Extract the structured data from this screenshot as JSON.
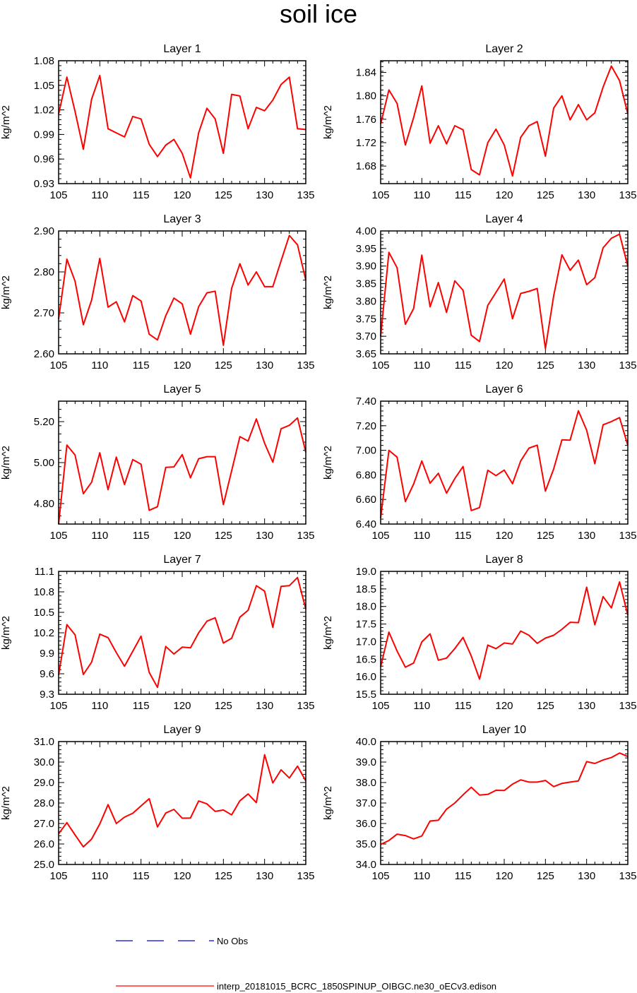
{
  "title": "soil ice",
  "colors": {
    "series": "#ff0000",
    "obs": "#0000cc",
    "axis": "#000000"
  },
  "chart_data": [
    {
      "type": "line",
      "title": "Layer 1",
      "ylabel": "kg/m^2",
      "xlim": [
        105,
        135
      ],
      "ylim": [
        0.93,
        1.08
      ],
      "xticks": [
        "105",
        "110",
        "115",
        "120",
        "125",
        "130",
        "135"
      ],
      "yticks": [
        "0.93",
        "0.96",
        "0.99",
        "1.02",
        "1.05",
        "1.08"
      ],
      "x": [
        105,
        106,
        107,
        108,
        109,
        110,
        111,
        112,
        113,
        114,
        115,
        116,
        117,
        118,
        119,
        120,
        121,
        122,
        123,
        124,
        125,
        126,
        127,
        128,
        129,
        130,
        131,
        132,
        133,
        134,
        135
      ],
      "values": [
        1.015,
        1.06,
        1.018,
        0.972,
        1.033,
        1.062,
        0.997,
        0.992,
        0.987,
        1.012,
        1.009,
        0.978,
        0.963,
        0.977,
        0.984,
        0.967,
        0.937,
        0.992,
        1.022,
        1.009,
        0.967,
        1.039,
        1.037,
        0.997,
        1.023,
        1.019,
        1.032,
        1.051,
        1.06,
        0.997,
        0.996
      ]
    },
    {
      "type": "line",
      "title": "Layer 2",
      "ylabel": "kg/m^2",
      "xlim": [
        105,
        135
      ],
      "ylim": [
        1.65,
        1.86
      ],
      "xticks": [
        "105",
        "110",
        "115",
        "120",
        "125",
        "130",
        "135"
      ],
      "yticks": [
        "1.68",
        "1.72",
        "1.76",
        "1.80",
        "1.84"
      ],
      "x": [
        105,
        106,
        107,
        108,
        109,
        110,
        111,
        112,
        113,
        114,
        115,
        116,
        117,
        118,
        119,
        120,
        121,
        122,
        123,
        124,
        125,
        126,
        127,
        128,
        129,
        130,
        131,
        132,
        133,
        134,
        135
      ],
      "values": [
        1.752,
        1.81,
        1.787,
        1.716,
        1.763,
        1.817,
        1.719,
        1.749,
        1.718,
        1.749,
        1.742,
        1.674,
        1.665,
        1.72,
        1.743,
        1.716,
        1.663,
        1.729,
        1.749,
        1.756,
        1.697,
        1.779,
        1.8,
        1.759,
        1.785,
        1.759,
        1.771,
        1.815,
        1.851,
        1.826,
        1.769
      ]
    },
    {
      "type": "line",
      "title": "Layer 3",
      "ylabel": "kg/m^2",
      "xlim": [
        105,
        135
      ],
      "ylim": [
        2.6,
        2.9
      ],
      "xticks": [
        "105",
        "110",
        "115",
        "120",
        "125",
        "130",
        "135"
      ],
      "yticks": [
        "2.60",
        "2.70",
        "2.80",
        "2.90"
      ],
      "x": [
        105,
        106,
        107,
        108,
        109,
        110,
        111,
        112,
        113,
        114,
        115,
        116,
        117,
        118,
        119,
        120,
        121,
        122,
        123,
        124,
        125,
        126,
        127,
        128,
        129,
        130,
        131,
        132,
        133,
        134,
        135
      ],
      "values": [
        2.685,
        2.831,
        2.777,
        2.671,
        2.731,
        2.833,
        2.714,
        2.727,
        2.678,
        2.742,
        2.729,
        2.648,
        2.634,
        2.693,
        2.736,
        2.722,
        2.648,
        2.715,
        2.749,
        2.753,
        2.621,
        2.76,
        2.82,
        2.768,
        2.8,
        2.764,
        2.764,
        2.827,
        2.889,
        2.866,
        2.78
      ]
    },
    {
      "type": "line",
      "title": "Layer 4",
      "ylabel": "kg/m^2",
      "xlim": [
        105,
        135
      ],
      "ylim": [
        3.65,
        4.0
      ],
      "xticks": [
        "105",
        "110",
        "115",
        "120",
        "125",
        "130",
        "135"
      ],
      "yticks": [
        "3.65",
        "3.70",
        "3.75",
        "3.80",
        "3.85",
        "3.90",
        "3.95",
        "4.00"
      ],
      "x": [
        105,
        106,
        107,
        108,
        109,
        110,
        111,
        112,
        113,
        114,
        115,
        116,
        117,
        118,
        119,
        120,
        121,
        122,
        123,
        124,
        125,
        126,
        127,
        128,
        129,
        130,
        131,
        132,
        133,
        134,
        135
      ],
      "values": [
        3.7,
        3.939,
        3.895,
        3.734,
        3.779,
        3.931,
        3.784,
        3.853,
        3.768,
        3.858,
        3.831,
        3.703,
        3.685,
        3.788,
        3.825,
        3.863,
        3.75,
        3.822,
        3.828,
        3.836,
        3.665,
        3.815,
        3.932,
        3.888,
        3.917,
        3.847,
        3.867,
        3.952,
        3.979,
        3.991,
        3.9
      ]
    },
    {
      "type": "line",
      "title": "Layer 5",
      "ylabel": "kg/m^2",
      "xlim": [
        105,
        135
      ],
      "ylim": [
        4.7,
        5.3
      ],
      "xticks": [
        "105",
        "110",
        "115",
        "120",
        "125",
        "130",
        "135"
      ],
      "yticks": [
        "4.80",
        "5.00",
        "5.20"
      ],
      "x": [
        105,
        106,
        107,
        108,
        109,
        110,
        111,
        112,
        113,
        114,
        115,
        116,
        117,
        118,
        119,
        120,
        121,
        122,
        123,
        124,
        125,
        126,
        127,
        128,
        129,
        130,
        131,
        132,
        133,
        134,
        135
      ],
      "values": [
        4.7,
        5.086,
        5.037,
        4.848,
        4.904,
        5.048,
        4.868,
        5.027,
        4.893,
        5.015,
        4.992,
        4.767,
        4.785,
        4.977,
        4.979,
        5.039,
        4.926,
        5.019,
        5.029,
        5.029,
        4.795,
        4.96,
        5.127,
        5.105,
        5.213,
        5.094,
        5.002,
        5.165,
        5.182,
        5.218,
        5.05
      ]
    },
    {
      "type": "line",
      "title": "Layer 6",
      "ylabel": "kg/m^2",
      "xlim": [
        105,
        135
      ],
      "ylim": [
        6.4,
        7.4
      ],
      "xticks": [
        "105",
        "110",
        "115",
        "120",
        "125",
        "130",
        "135"
      ],
      "yticks": [
        "6.40",
        "6.60",
        "6.80",
        "7.00",
        "7.20",
        "7.40"
      ],
      "x": [
        105,
        106,
        107,
        108,
        109,
        110,
        111,
        112,
        113,
        114,
        115,
        116,
        117,
        118,
        119,
        120,
        121,
        122,
        123,
        124,
        125,
        126,
        127,
        128,
        129,
        130,
        131,
        132,
        133,
        134,
        135
      ],
      "values": [
        6.45,
        7.0,
        6.944,
        6.583,
        6.726,
        6.913,
        6.733,
        6.813,
        6.652,
        6.77,
        6.868,
        6.51,
        6.534,
        6.838,
        6.794,
        6.839,
        6.728,
        6.913,
        7.018,
        7.042,
        6.668,
        6.848,
        7.085,
        7.083,
        7.322,
        7.164,
        6.891,
        7.208,
        7.234,
        7.266,
        7.04
      ]
    },
    {
      "type": "line",
      "title": "Layer 7",
      "ylabel": "kg/m^2",
      "xlim": [
        105,
        135
      ],
      "ylim": [
        9.3,
        11.1
      ],
      "xticks": [
        "105",
        "110",
        "115",
        "120",
        "125",
        "130",
        "135"
      ],
      "yticks": [
        "9.3",
        "9.6",
        "9.9",
        "10.2",
        "10.5",
        "10.8",
        "11.1"
      ],
      "x": [
        105,
        106,
        107,
        108,
        109,
        110,
        111,
        112,
        113,
        114,
        115,
        116,
        117,
        118,
        119,
        120,
        121,
        122,
        123,
        124,
        125,
        126,
        127,
        128,
        129,
        130,
        131,
        132,
        133,
        134,
        135
      ],
      "values": [
        9.58,
        10.32,
        10.17,
        9.59,
        9.77,
        10.18,
        10.13,
        9.91,
        9.71,
        9.93,
        10.15,
        9.62,
        9.4,
        10.0,
        9.89,
        9.99,
        9.98,
        10.2,
        10.37,
        10.42,
        10.05,
        10.12,
        10.43,
        10.53,
        10.89,
        10.81,
        10.28,
        10.88,
        10.89,
        11.01,
        10.55
      ]
    },
    {
      "type": "line",
      "title": "Layer 8",
      "ylabel": "kg/m^2",
      "xlim": [
        105,
        135
      ],
      "ylim": [
        15.5,
        19.0
      ],
      "xticks": [
        "105",
        "110",
        "115",
        "120",
        "125",
        "130",
        "135"
      ],
      "yticks": [
        "15.5",
        "16.0",
        "16.5",
        "17.0",
        "17.5",
        "18.0",
        "18.5",
        "19.0"
      ],
      "x": [
        105,
        106,
        107,
        108,
        109,
        110,
        111,
        112,
        113,
        114,
        115,
        116,
        117,
        118,
        119,
        120,
        121,
        122,
        123,
        124,
        125,
        126,
        127,
        128,
        129,
        130,
        131,
        132,
        133,
        134,
        135
      ],
      "values": [
        16.28,
        17.27,
        16.73,
        16.27,
        16.39,
        16.99,
        17.22,
        16.47,
        16.53,
        16.8,
        17.12,
        16.59,
        15.93,
        16.9,
        16.8,
        16.96,
        16.93,
        17.3,
        17.18,
        16.95,
        17.1,
        17.18,
        17.35,
        17.55,
        17.54,
        18.55,
        17.48,
        18.28,
        17.96,
        18.7,
        17.75
      ]
    },
    {
      "type": "line",
      "title": "Layer 9",
      "ylabel": "kg/m^2",
      "xlim": [
        105,
        135
      ],
      "ylim": [
        25.0,
        31.0
      ],
      "xticks": [
        "105",
        "110",
        "115",
        "120",
        "125",
        "130",
        "135"
      ],
      "yticks": [
        "25.0",
        "26.0",
        "27.0",
        "28.0",
        "29.0",
        "30.0",
        "31.0"
      ],
      "x": [
        105,
        106,
        107,
        108,
        109,
        110,
        111,
        112,
        113,
        114,
        115,
        116,
        117,
        118,
        119,
        120,
        121,
        122,
        123,
        124,
        125,
        126,
        127,
        128,
        129,
        130,
        131,
        132,
        133,
        134,
        135
      ],
      "values": [
        26.5,
        27.04,
        26.44,
        25.86,
        26.24,
        26.98,
        27.92,
        27.0,
        27.31,
        27.5,
        27.86,
        28.21,
        26.83,
        27.51,
        27.69,
        27.26,
        27.27,
        28.1,
        27.96,
        27.59,
        27.66,
        27.42,
        28.11,
        28.44,
        28.02,
        30.36,
        28.98,
        29.62,
        29.22,
        29.8,
        29.08
      ]
    },
    {
      "type": "line",
      "title": "Layer 10",
      "ylabel": "kg/m^2",
      "xlim": [
        105,
        135
      ],
      "ylim": [
        34.0,
        40.0
      ],
      "xticks": [
        "105",
        "110",
        "115",
        "120",
        "125",
        "130",
        "135"
      ],
      "yticks": [
        "34.0",
        "35.0",
        "36.0",
        "37.0",
        "38.0",
        "39.0",
        "40.0"
      ],
      "x": [
        105,
        106,
        107,
        108,
        109,
        110,
        111,
        112,
        113,
        114,
        115,
        116,
        117,
        118,
        119,
        120,
        121,
        122,
        123,
        124,
        125,
        126,
        127,
        128,
        129,
        130,
        131,
        132,
        133,
        134,
        135
      ],
      "values": [
        34.98,
        35.17,
        35.48,
        35.41,
        35.25,
        35.39,
        36.12,
        36.16,
        36.7,
        37.0,
        37.4,
        37.77,
        37.39,
        37.42,
        37.62,
        37.61,
        37.92,
        38.13,
        38.02,
        38.02,
        38.1,
        37.8,
        37.96,
        38.02,
        38.08,
        39.02,
        38.93,
        39.1,
        39.22,
        39.44,
        39.27
      ]
    }
  ],
  "legend": [
    {
      "label": "No Obs",
      "style": "dashed",
      "color": "#0000cc"
    },
    {
      "label": "interp_20181015_BCRC_1850SPINUP_OIBGC.ne30_oECv3.edison",
      "style": "solid",
      "color": "#ff0000"
    }
  ]
}
